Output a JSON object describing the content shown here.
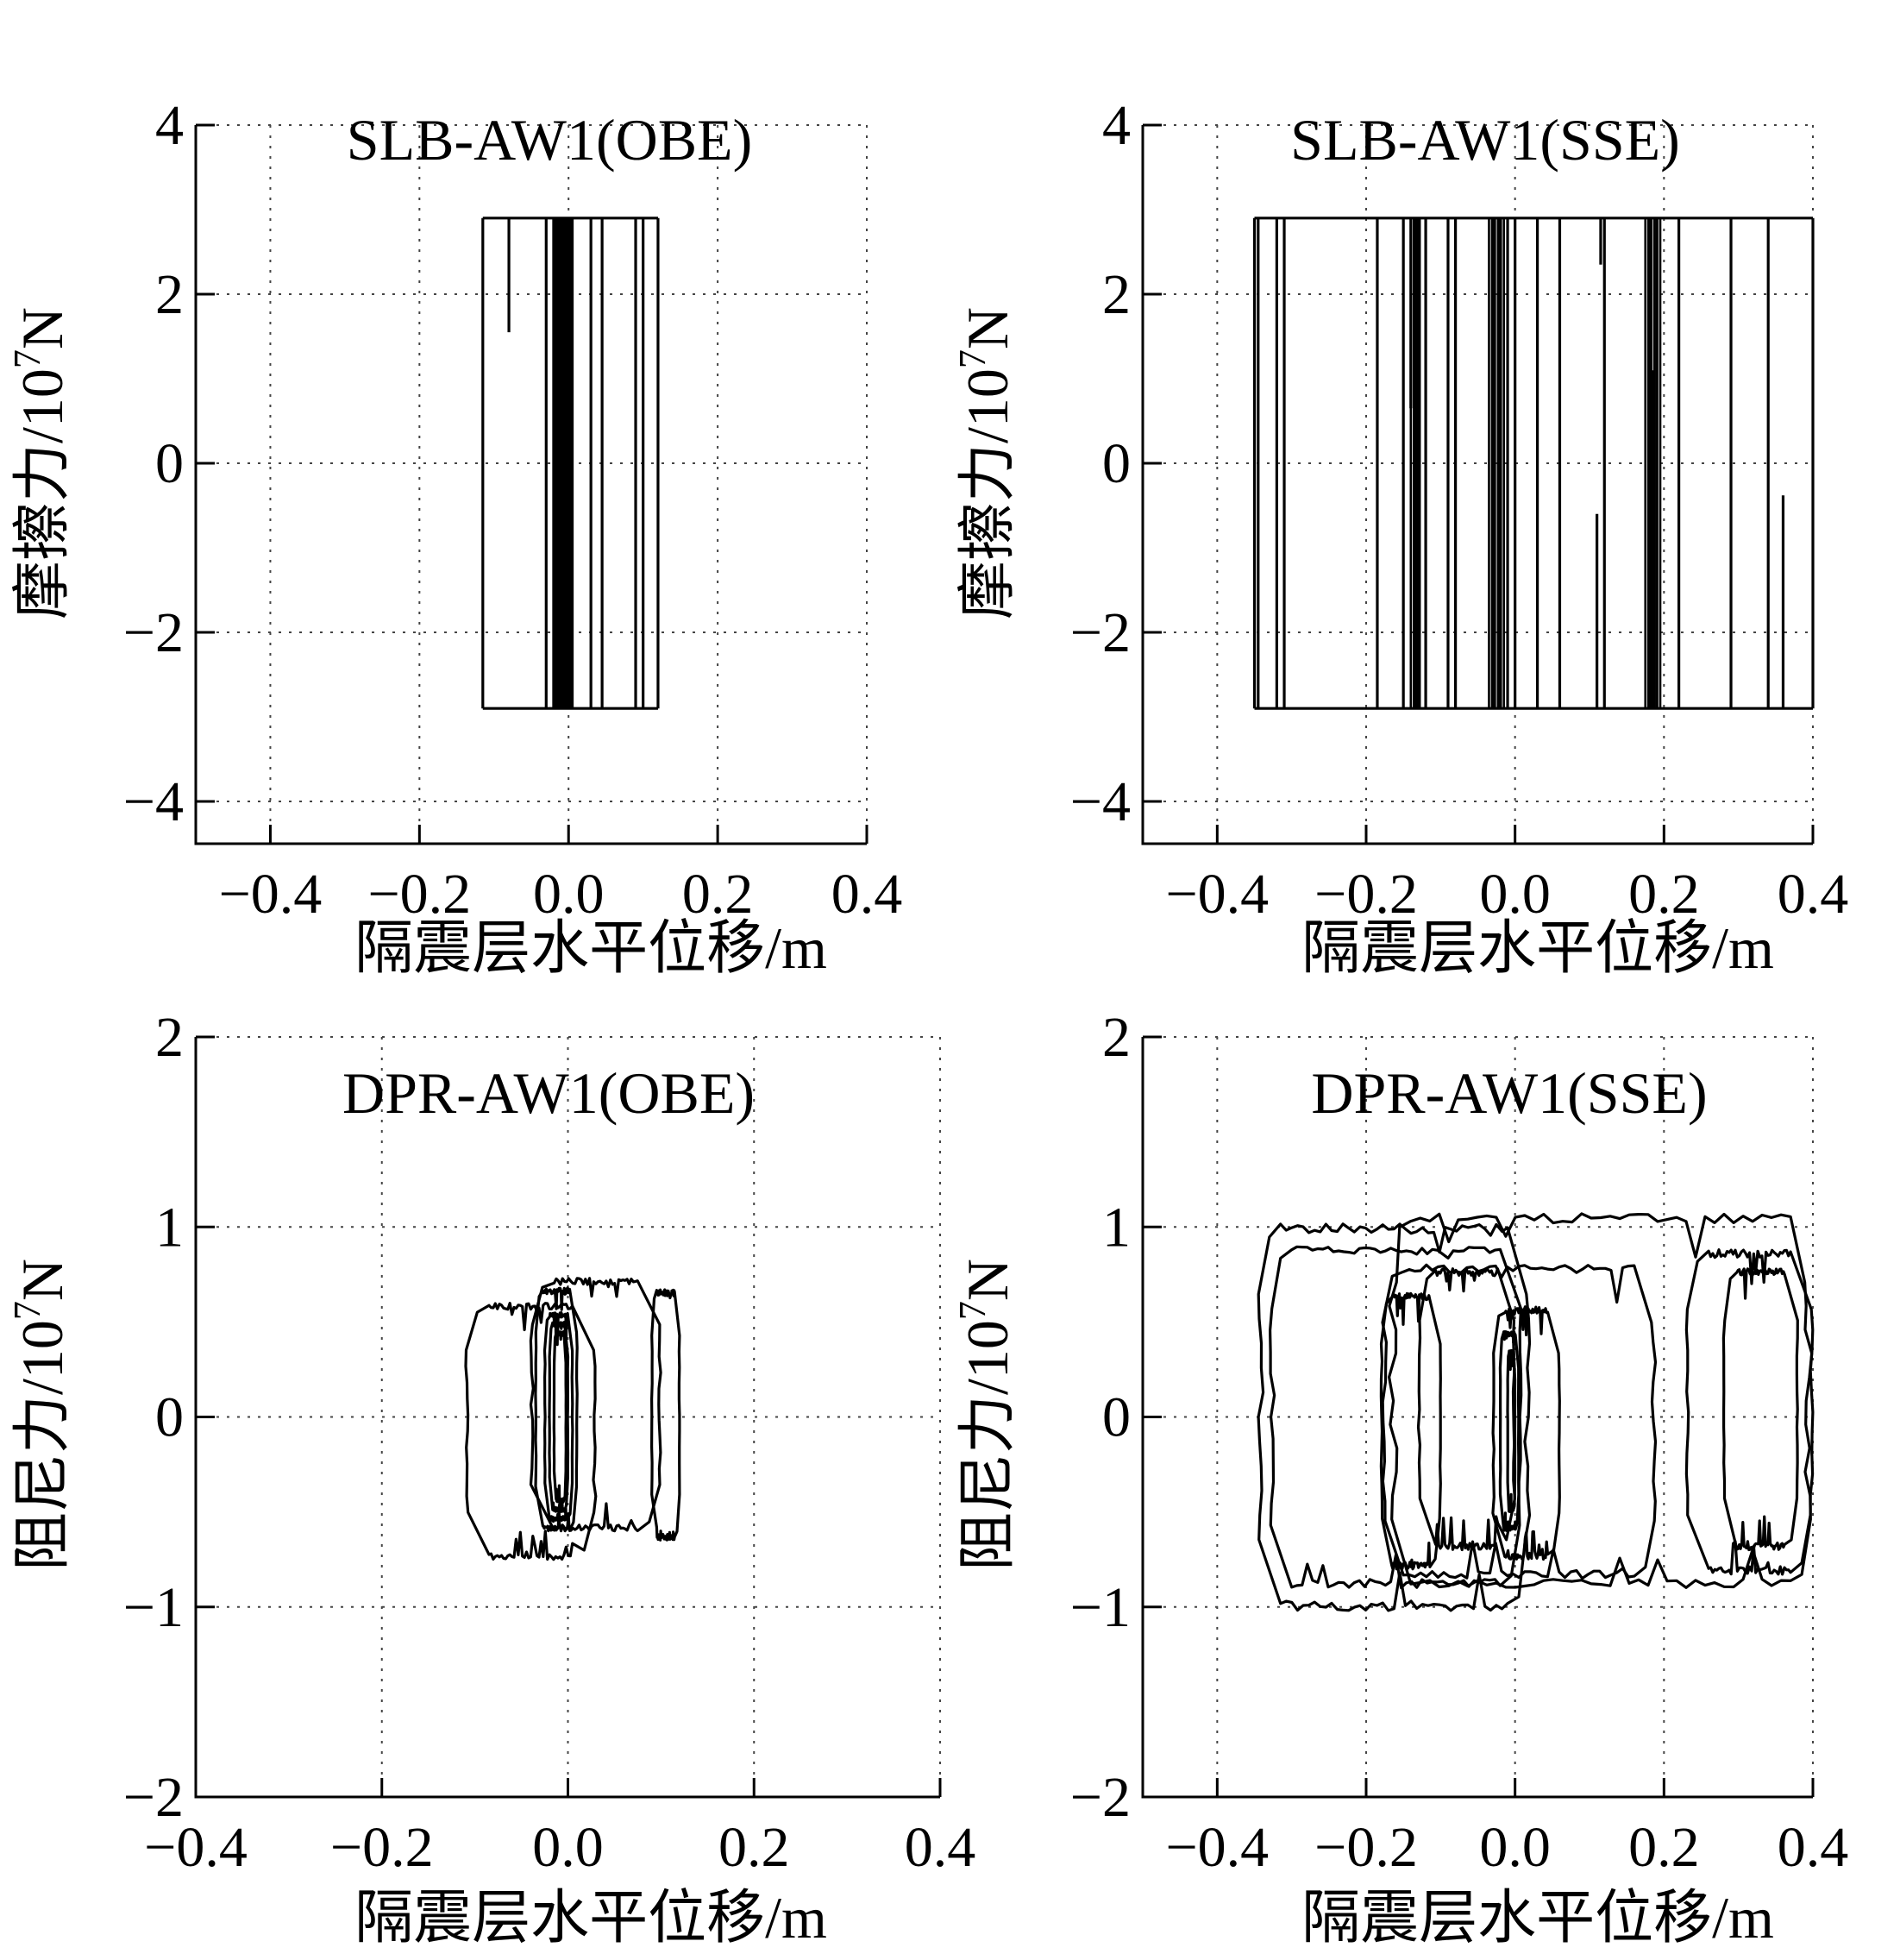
{
  "chart_data": [
    {
      "id": "slb-obe",
      "type": "line",
      "title": "SLB-AW1(OBE)",
      "xlabel": "隔震层水平位移/m",
      "ylabel_main": "摩擦力/10",
      "ylabel_exp": "7",
      "ylabel_unit": "N",
      "xlim": [
        -0.5,
        0.4
      ],
      "ylim": [
        -4.5,
        4
      ],
      "xticks": [
        -0.4,
        -0.2,
        0.0,
        0.2,
        0.4
      ],
      "xtick_labels": [
        "−0.4",
        "−0.2",
        "0.0",
        "0.2",
        "0.4"
      ],
      "yticks": [
        4,
        2,
        0,
        -2,
        -4
      ],
      "ytick_labels": [
        "4",
        "2",
        "0",
        "−2",
        "−4"
      ],
      "grid": true,
      "friction_force": 2.9,
      "x_range": [
        -0.115,
        0.12
      ],
      "reversal_x": [
        -0.115,
        -0.03,
        -0.02,
        -0.015,
        -0.01,
        -0.005,
        0.0,
        0.005,
        0.03,
        0.045,
        0.09,
        0.1,
        0.12
      ],
      "partial_branches": [
        {
          "x": -0.08,
          "y_from": 2.9,
          "y_to": 1.55
        }
      ]
    },
    {
      "id": "slb-sse",
      "type": "line",
      "title": "SLB-AW1(SSE)",
      "xlabel": "隔震层水平位移/m",
      "ylabel_main": "摩擦力/10",
      "ylabel_exp": "7",
      "ylabel_unit": "N",
      "xlim": [
        -0.5,
        0.4
      ],
      "ylim": [
        -4.5,
        4
      ],
      "xticks": [
        -0.4,
        -0.2,
        0.0,
        0.2,
        0.4
      ],
      "xtick_labels": [
        "−0.4",
        "−0.2",
        "0.0",
        "0.2",
        "0.4"
      ],
      "yticks": [
        4,
        2,
        0,
        -2,
        -4
      ],
      "ytick_labels": [
        "4",
        "2",
        "0",
        "−2",
        "−4"
      ],
      "grid": true,
      "friction_force": 2.9,
      "x_range": [
        -0.35,
        0.4
      ],
      "reversal_x": [
        -0.35,
        -0.345,
        -0.32,
        -0.31,
        -0.185,
        -0.15,
        -0.135,
        -0.13,
        -0.12,
        -0.09,
        -0.08,
        -0.03,
        -0.02,
        -0.01,
        0.0,
        0.03,
        0.06,
        0.12,
        0.18,
        0.19,
        0.22,
        0.29,
        0.34,
        0.4
      ],
      "partial_branches": [
        {
          "x": -0.14,
          "y_from": 2.9,
          "y_to": 0.65
        },
        {
          "x": 0.11,
          "y_from": -2.9,
          "y_to": -0.6
        },
        {
          "x": 0.115,
          "y_from": 2.9,
          "y_to": 2.35
        },
        {
          "x": 0.185,
          "y_from": -2.9,
          "y_to": 1.1
        },
        {
          "x": 0.36,
          "y_from": -2.9,
          "y_to": -0.38
        }
      ]
    },
    {
      "id": "dpr-obe",
      "type": "line",
      "title": "DPR-AW1(OBE)",
      "xlabel": "隔震层水平位移/m",
      "ylabel_main": "阻尼力/10",
      "ylabel_exp": "7",
      "ylabel_unit": "N",
      "xlim": [
        -0.4,
        0.4
      ],
      "ylim": [
        -2,
        2
      ],
      "xticks": [
        -0.4,
        -0.2,
        0.0,
        0.2,
        0.4
      ],
      "xtick_labels": [
        "−0.4",
        "−0.2",
        "0.0",
        "0.2",
        "0.4"
      ],
      "yticks": [
        2,
        1,
        0,
        -1,
        -2
      ],
      "ytick_labels": [
        "2",
        "1",
        "0",
        "−1",
        "−2"
      ],
      "grid": true,
      "loops": [
        {
          "xmin": -0.11,
          "xmax": 0.03,
          "ytop": 0.6,
          "ybot": -0.75
        },
        {
          "xmin": -0.04,
          "xmax": 0.1,
          "ytop": 0.73,
          "ybot": -0.6
        },
        {
          "xmin": 0.09,
          "xmax": 0.12,
          "ytop": 0.67,
          "ybot": -0.65
        },
        {
          "xmin": -0.035,
          "xmax": 0.01,
          "ytop": 0.68,
          "ybot": -0.6
        },
        {
          "xmin": -0.025,
          "xmax": 0.005,
          "ytop": 0.55,
          "ybot": -0.55
        },
        {
          "xmin": -0.02,
          "xmax": 0.0,
          "ytop": 0.5,
          "ybot": -0.5
        },
        {
          "xmin": -0.015,
          "xmax": -0.002,
          "ytop": 0.45,
          "ybot": -0.45
        }
      ]
    },
    {
      "id": "dpr-sse",
      "type": "line",
      "title": "DPR-AW1(SSE)",
      "xlabel": "隔震层水平位移/m",
      "ylabel_main": "阻尼力/10",
      "ylabel_exp": "7",
      "ylabel_unit": "N",
      "xlim": [
        -0.5,
        0.4
      ],
      "ylim": [
        -2,
        2
      ],
      "xticks": [
        -0.4,
        -0.2,
        0.0,
        0.2,
        0.4
      ],
      "xtick_labels": [
        "−0.4",
        "−0.2",
        "0.0",
        "0.2",
        "0.4"
      ],
      "yticks": [
        2,
        1,
        0,
        -1,
        -2
      ],
      "ytick_labels": [
        "2",
        "1",
        "0",
        "−1",
        "−2"
      ],
      "grid": true,
      "loops": [
        {
          "xmin": -0.345,
          "xmax": 0.02,
          "ytop": 1.02,
          "ybot": -1.02
        },
        {
          "xmin": -0.33,
          "xmax": 0.01,
          "ytop": 0.9,
          "ybot": -0.9
        },
        {
          "xmin": -0.17,
          "xmax": 0.4,
          "ytop": 1.07,
          "ybot": -0.9
        },
        {
          "xmin": 0.23,
          "xmax": 0.4,
          "ytop": 0.88,
          "ybot": -0.83
        },
        {
          "xmin": 0.28,
          "xmax": 0.38,
          "ytop": 0.78,
          "ybot": -0.7
        },
        {
          "xmin": -0.18,
          "xmax": 0.19,
          "ytop": 0.8,
          "ybot": -0.85
        },
        {
          "xmin": -0.13,
          "xmax": 0.0,
          "ytop": 0.78,
          "ybot": -0.7
        },
        {
          "xmin": -0.18,
          "xmax": -0.1,
          "ytop": 0.65,
          "ybot": -0.8
        },
        {
          "xmin": -0.03,
          "xmax": 0.06,
          "ytop": 0.58,
          "ybot": -0.75
        },
        {
          "xmin": -0.02,
          "xmax": 0.005,
          "ytop": 0.45,
          "ybot": -0.6
        },
        {
          "xmin": -0.01,
          "xmax": 0.0,
          "ytop": 0.35,
          "ybot": -0.5
        }
      ]
    }
  ]
}
